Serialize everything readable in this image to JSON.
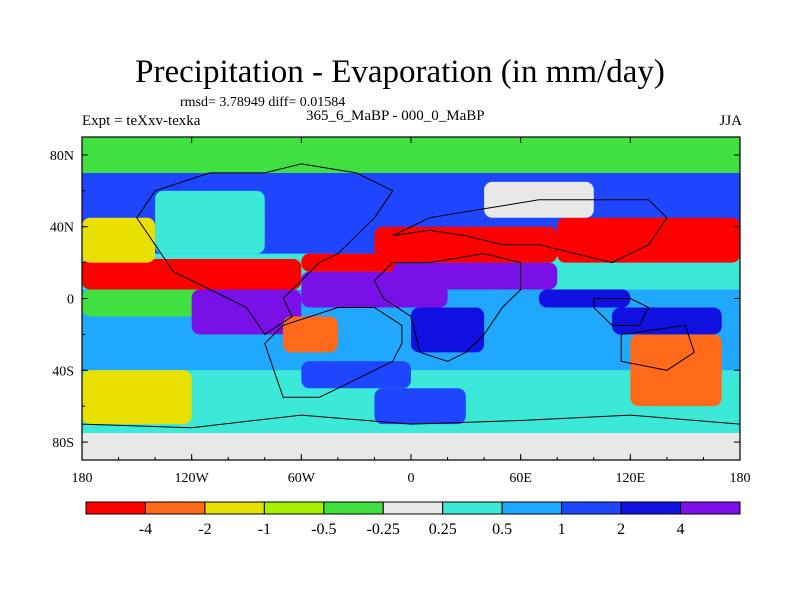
{
  "title": "Precipitation - Evaporation (in mm/day)",
  "stats": "rmsd= 3.78949 diff= 0.01584",
  "experiment": "Expt = teXxv-texka",
  "difference_label": "365_6_MaBP - 000_0_MaBP",
  "season": "JJA",
  "x_tick_labels": [
    "180",
    "120W",
    "60W",
    "0",
    "60E",
    "120E",
    "180"
  ],
  "y_tick_labels": [
    "80N",
    "40N",
    "0",
    "40S",
    "80S"
  ],
  "colorbar": {
    "colors": [
      "#ff0000",
      "#ff6a1a",
      "#e8e000",
      "#a8f000",
      "#40e040",
      "#e8e8e8",
      "#3ce8d8",
      "#20a8ff",
      "#1e46ff",
      "#1010e0",
      "#7a10e8"
    ],
    "labels": [
      "-4",
      "-2",
      "-1",
      "-0.5",
      "-0.25",
      "0.25",
      "0.5",
      "1",
      "2",
      "4"
    ]
  },
  "colors": {
    "strong_negative": "#ff0000",
    "negative": "#ff6a1a",
    "weak_negative": "#a8f000",
    "near_zero": "#e8e8e8",
    "weak_positive": "#20a8ff",
    "positive": "#1e46ff",
    "strong_positive": "#7a10e8"
  },
  "chart_data": {
    "type": "heatmap",
    "projection": "equirectangular",
    "xlim": [
      -180,
      180
    ],
    "ylim": [
      -90,
      90
    ],
    "contour_levels": [
      -4,
      -2,
      -1,
      -0.5,
      -0.25,
      0.25,
      0.5,
      1,
      2,
      4
    ],
    "regions": [
      {
        "name": "band",
        "lon": [
          -180,
          180
        ],
        "lat": [
          -40,
          5
        ],
        "value": 0.75
      },
      {
        "name": "band",
        "lon": [
          -180,
          180
        ],
        "lat": [
          -75,
          -40
        ],
        "value": 0.3
      },
      {
        "name": "band",
        "lon": [
          -180,
          180
        ],
        "lat": [
          -90,
          -75
        ],
        "value": 0
      },
      {
        "name": "band",
        "lon": [
          -180,
          180
        ],
        "lat": [
          25,
          70
        ],
        "value": 1.5
      },
      {
        "name": "band",
        "lon": [
          -180,
          180
        ],
        "lat": [
          70,
          90
        ],
        "value": -0.4
      },
      {
        "name": "region",
        "lon": [
          -180,
          -100
        ],
        "lat": [
          -10,
          5
        ],
        "value": -0.4
      },
      {
        "name": "region",
        "lon": [
          -180,
          -120
        ],
        "lat": [
          5,
          15
        ],
        "value": 3
      },
      {
        "name": "region",
        "lon": [
          -180,
          -60
        ],
        "lat": [
          5,
          22
        ],
        "value": -5
      },
      {
        "name": "region",
        "lon": [
          -120,
          -60
        ],
        "lat": [
          -20,
          5
        ],
        "value": 5
      },
      {
        "name": "region",
        "lon": [
          -60,
          20
        ],
        "lat": [
          -5,
          15
        ],
        "value": 5
      },
      {
        "name": "region",
        "lon": [
          -60,
          0
        ],
        "lat": [
          15,
          25
        ],
        "value": -5
      },
      {
        "name": "region",
        "lon": [
          -10,
          80
        ],
        "lat": [
          5,
          20
        ],
        "value": 5
      },
      {
        "name": "region",
        "lon": [
          -20,
          80
        ],
        "lat": [
          20,
          40
        ],
        "value": -5
      },
      {
        "name": "region",
        "lon": [
          80,
          180
        ],
        "lat": [
          20,
          45
        ],
        "value": -5
      },
      {
        "name": "region",
        "lon": [
          40,
          100
        ],
        "lat": [
          45,
          65
        ],
        "value": 0
      },
      {
        "name": "region",
        "lon": [
          -140,
          -80
        ],
        "lat": [
          25,
          60
        ],
        "value": 0.3
      },
      {
        "name": "region",
        "lon": [
          -180,
          -140
        ],
        "lat": [
          20,
          45
        ],
        "value": -2
      },
      {
        "name": "region",
        "lon": [
          -180,
          -120
        ],
        "lat": [
          -70,
          -40
        ],
        "value": -2
      },
      {
        "name": "region",
        "lon": [
          -70,
          -40
        ],
        "lat": [
          -30,
          -10
        ],
        "value": -3
      },
      {
        "name": "region",
        "lon": [
          0,
          40
        ],
        "lat": [
          -30,
          -5
        ],
        "value": 3
      },
      {
        "name": "region",
        "lon": [
          70,
          120
        ],
        "lat": [
          -5,
          5
        ],
        "value": 3
      },
      {
        "name": "region",
        "lon": [
          120,
          170
        ],
        "lat": [
          -60,
          -20
        ],
        "value": -3
      },
      {
        "name": "region",
        "lon": [
          110,
          170
        ],
        "lat": [
          -20,
          -5
        ],
        "value": 2.5
      },
      {
        "name": "region",
        "lon": [
          -60,
          0
        ],
        "lat": [
          -50,
          -35
        ],
        "value": 1.5
      },
      {
        "name": "region",
        "lon": [
          -20,
          30
        ],
        "lat": [
          -70,
          -50
        ],
        "value": 1.5
      }
    ],
    "continent_outlines": [
      [
        [
          -80,
          70
        ],
        [
          -60,
          75
        ],
        [
          -30,
          70
        ],
        [
          -10,
          60
        ],
        [
          -20,
          45
        ],
        [
          -30,
          35
        ],
        [
          -40,
          25
        ],
        [
          -50,
          20
        ],
        [
          -60,
          10
        ],
        [
          -70,
          0
        ],
        [
          -65,
          -10
        ],
        [
          -80,
          -20
        ],
        [
          -90,
          -5
        ],
        [
          -110,
          5
        ],
        [
          -130,
          15
        ],
        [
          -140,
          30
        ],
        [
          -150,
          45
        ],
        [
          -140,
          60
        ],
        [
          -110,
          70
        ],
        [
          -80,
          70
        ]
      ],
      [
        [
          -70,
          -15
        ],
        [
          -40,
          -5
        ],
        [
          -20,
          -5
        ],
        [
          -5,
          -15
        ],
        [
          -5,
          -25
        ],
        [
          -10,
          -35
        ],
        [
          -30,
          -45
        ],
        [
          -50,
          -55
        ],
        [
          -70,
          -55
        ],
        [
          -75,
          -40
        ],
        [
          -80,
          -25
        ],
        [
          -70,
          -15
        ]
      ],
      [
        [
          -10,
          20
        ],
        [
          10,
          20
        ],
        [
          40,
          25
        ],
        [
          60,
          20
        ],
        [
          60,
          5
        ],
        [
          50,
          -5
        ],
        [
          40,
          -20
        ],
        [
          30,
          -30
        ],
        [
          20,
          -35
        ],
        [
          5,
          -30
        ],
        [
          0,
          -10
        ],
        [
          -15,
          0
        ],
        [
          -20,
          10
        ],
        [
          -10,
          20
        ]
      ],
      [
        [
          -10,
          35
        ],
        [
          10,
          45
        ],
        [
          40,
          50
        ],
        [
          70,
          55
        ],
        [
          100,
          55
        ],
        [
          130,
          55
        ],
        [
          140,
          45
        ],
        [
          130,
          30
        ],
        [
          110,
          20
        ],
        [
          90,
          25
        ],
        [
          70,
          30
        ],
        [
          50,
          30
        ],
        [
          30,
          35
        ],
        [
          10,
          38
        ],
        [
          -10,
          35
        ]
      ],
      [
        [
          100,
          0
        ],
        [
          120,
          0
        ],
        [
          130,
          -5
        ],
        [
          125,
          -15
        ],
        [
          110,
          -15
        ],
        [
          100,
          -5
        ],
        [
          100,
          0
        ]
      ],
      [
        [
          115,
          -20
        ],
        [
          150,
          -15
        ],
        [
          155,
          -30
        ],
        [
          140,
          -40
        ],
        [
          115,
          -35
        ],
        [
          115,
          -20
        ]
      ],
      [
        [
          -180,
          -70
        ],
        [
          -120,
          -72
        ],
        [
          -60,
          -65
        ],
        [
          0,
          -70
        ],
        [
          60,
          -68
        ],
        [
          120,
          -65
        ],
        [
          180,
          -70
        ],
        [
          180,
          -90
        ],
        [
          -180,
          -90
        ],
        [
          -180,
          -70
        ]
      ]
    ]
  }
}
